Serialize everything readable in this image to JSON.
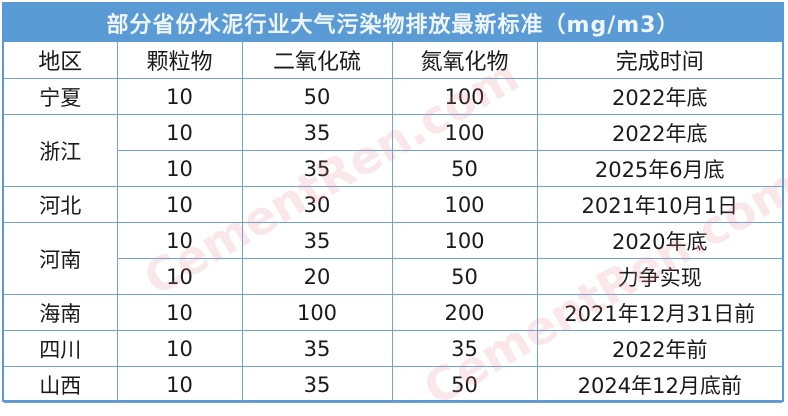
{
  "title": "部分省份水泥行业大气污染物排放最新标准（mg/m3）",
  "headers": [
    "地区",
    "颗粒物",
    "二氧化硫",
    "氮氧化物",
    "完成时间"
  ],
  "rows": [
    {
      "region": "宁夏",
      "pm": "10",
      "so2": "50",
      "nox": "100",
      "deadline": "2022年底"
    },
    {
      "region": "浙江",
      "pm": "10",
      "so2": "35",
      "nox": "100",
      "deadline": "2022年底"
    },
    {
      "region": "",
      "pm": "10",
      "so2": "35",
      "nox": "50",
      "deadline": "2025年6月底"
    },
    {
      "region": "河北",
      "pm": "10",
      "so2": "30",
      "nox": "100",
      "deadline": "2021年10月1日"
    },
    {
      "region": "河南",
      "pm": "10",
      "so2": "35",
      "nox": "100",
      "deadline": "2020年底"
    },
    {
      "region": "",
      "pm": "10",
      "so2": "20",
      "nox": "50",
      "deadline": "力争实现"
    },
    {
      "region": "海南",
      "pm": "10",
      "so2": "100",
      "nox": "200",
      "deadline": "2021年12月31日前"
    },
    {
      "region": "四川",
      "pm": "10",
      "so2": "35",
      "nox": "35",
      "deadline": "2022年前"
    },
    {
      "region": "山西",
      "pm": "10",
      "so2": "35",
      "nox": "50",
      "deadline": "2024年12月底前"
    }
  ],
  "watermark": "CementRen.com 水泥人网",
  "colors": {
    "accent": "#5b9bd5",
    "grid": "#6fa3d8"
  }
}
